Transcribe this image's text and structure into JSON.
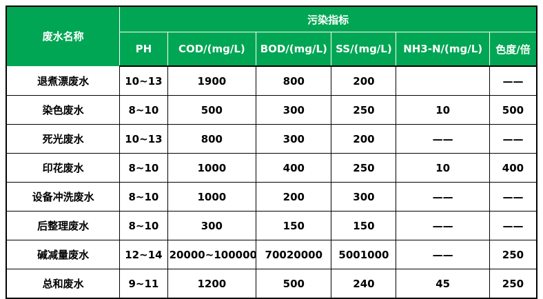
{
  "colors": {
    "header_bg": "#00a653",
    "header_text": "#ffffff",
    "border": "#000000",
    "body_text": "#000000",
    "body_bg": "#ffffff"
  },
  "chart_data": {
    "type": "table",
    "row_header_label": "废水名称",
    "group_header": "污染指标",
    "columns": [
      "PH",
      "COD/(mg/L)",
      "BOD/(mg/L)",
      "SS/(mg/L)",
      "NH3-N/(mg/L)",
      "色度/倍"
    ],
    "rows": [
      {
        "name": "退煮漂废水",
        "values": [
          "10~13",
          "1900",
          "800",
          "200",
          "",
          "——"
        ]
      },
      {
        "name": "染色废水",
        "values": [
          "8~10",
          "500",
          "300",
          "250",
          "10",
          "500"
        ]
      },
      {
        "name": "死光废水",
        "values": [
          "10~13",
          "800",
          "300",
          "200",
          "——",
          "——"
        ]
      },
      {
        "name": "印花废水",
        "values": [
          "8~10",
          "1000",
          "400",
          "250",
          "10",
          "400"
        ]
      },
      {
        "name": "设备冲洗废水",
        "values": [
          "8~10",
          "1000",
          "200",
          "300",
          "——",
          "——"
        ]
      },
      {
        "name": "后整理废水",
        "values": [
          "8~10",
          "300",
          "150",
          "150",
          "——",
          "——"
        ]
      },
      {
        "name": "碱减量废水",
        "values": [
          "12~14",
          "20000~100000",
          "70020000",
          "5001000",
          "——",
          "250"
        ]
      },
      {
        "name": "总和废水",
        "values": [
          "9~11",
          "1200",
          "500",
          "240",
          "45",
          "250"
        ]
      }
    ]
  }
}
